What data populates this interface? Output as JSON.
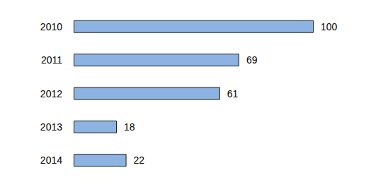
{
  "chart_data": {
    "type": "bar",
    "orientation": "horizontal",
    "categories": [
      "2010",
      "2011",
      "2012",
      "2013",
      "2014"
    ],
    "values": [
      100,
      69,
      61,
      18,
      22
    ],
    "color": "#8db3e2",
    "xlim": [
      0,
      100
    ],
    "grid": false,
    "data_labels": true,
    "tick_labels": "y"
  }
}
